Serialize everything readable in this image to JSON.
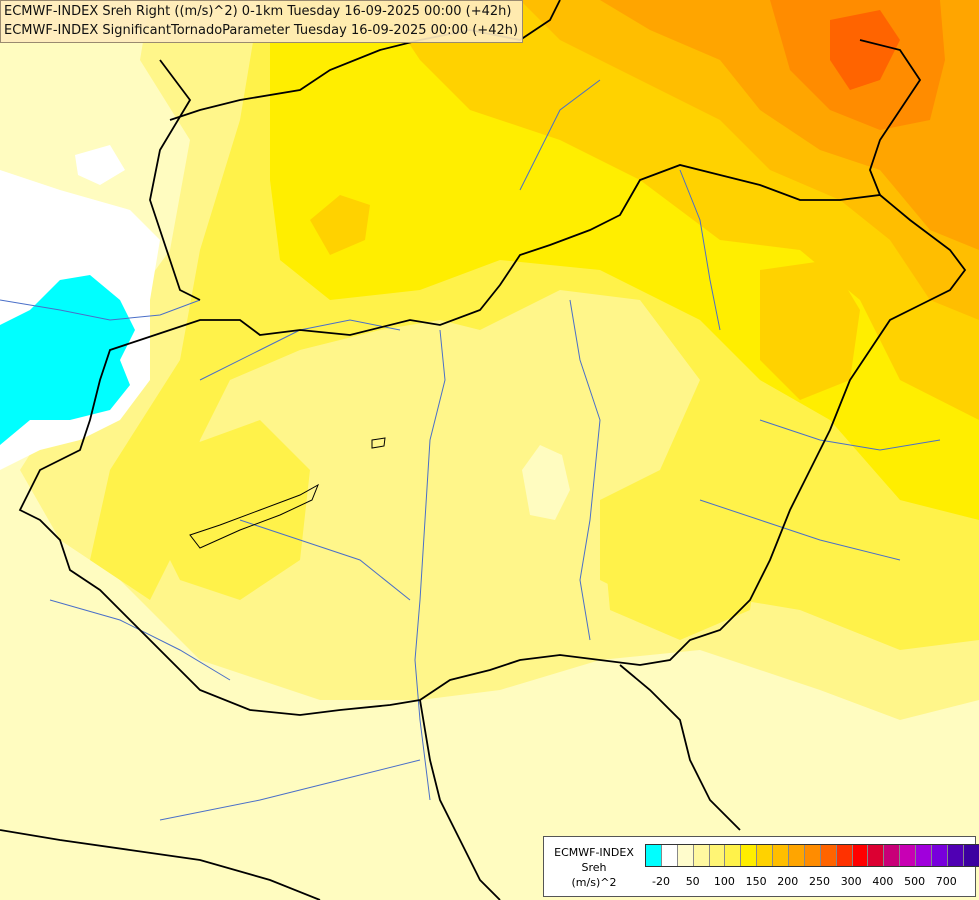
{
  "header": {
    "title_line1": "ECMWF-INDEX Sreh Right ((m/s)^2) 0-1km Tuesday 16-09-2025 00:00 (+42h)",
    "title_line2": "ECMWF-INDEX SignificantTornadoParameter Tuesday 16-09-2025 00:00 (+42h)"
  },
  "legend": {
    "line1": "ECMWF-INDEX",
    "line2": "Sreh",
    "line3": "(m/s)^2",
    "colors": [
      "#00ffff",
      "#ffffff",
      "#fffccc",
      "#fff8a0",
      "#fff575",
      "#fff24a",
      "#ffee00",
      "#ffd200",
      "#ffbe00",
      "#ffa500",
      "#ff8c00",
      "#ff6400",
      "#ff3200",
      "#ff0000",
      "#dc0032",
      "#c80078",
      "#c800b4",
      "#a000dc",
      "#7800dc",
      "#5000b4",
      "#3c00a0",
      "#14008c",
      "#000078"
    ],
    "ticks": [
      {
        "label": "-20",
        "index": 1
      },
      {
        "label": "50",
        "index": 3
      },
      {
        "label": "100",
        "index": 5
      },
      {
        "label": "150",
        "index": 7
      },
      {
        "label": "200",
        "index": 9
      },
      {
        "label": "250",
        "index": 11
      },
      {
        "label": "300",
        "index": 13
      },
      {
        "label": "400",
        "index": 15
      },
      {
        "label": "500",
        "index": 17
      },
      {
        "label": "700",
        "index": 19
      }
    ]
  }
}
